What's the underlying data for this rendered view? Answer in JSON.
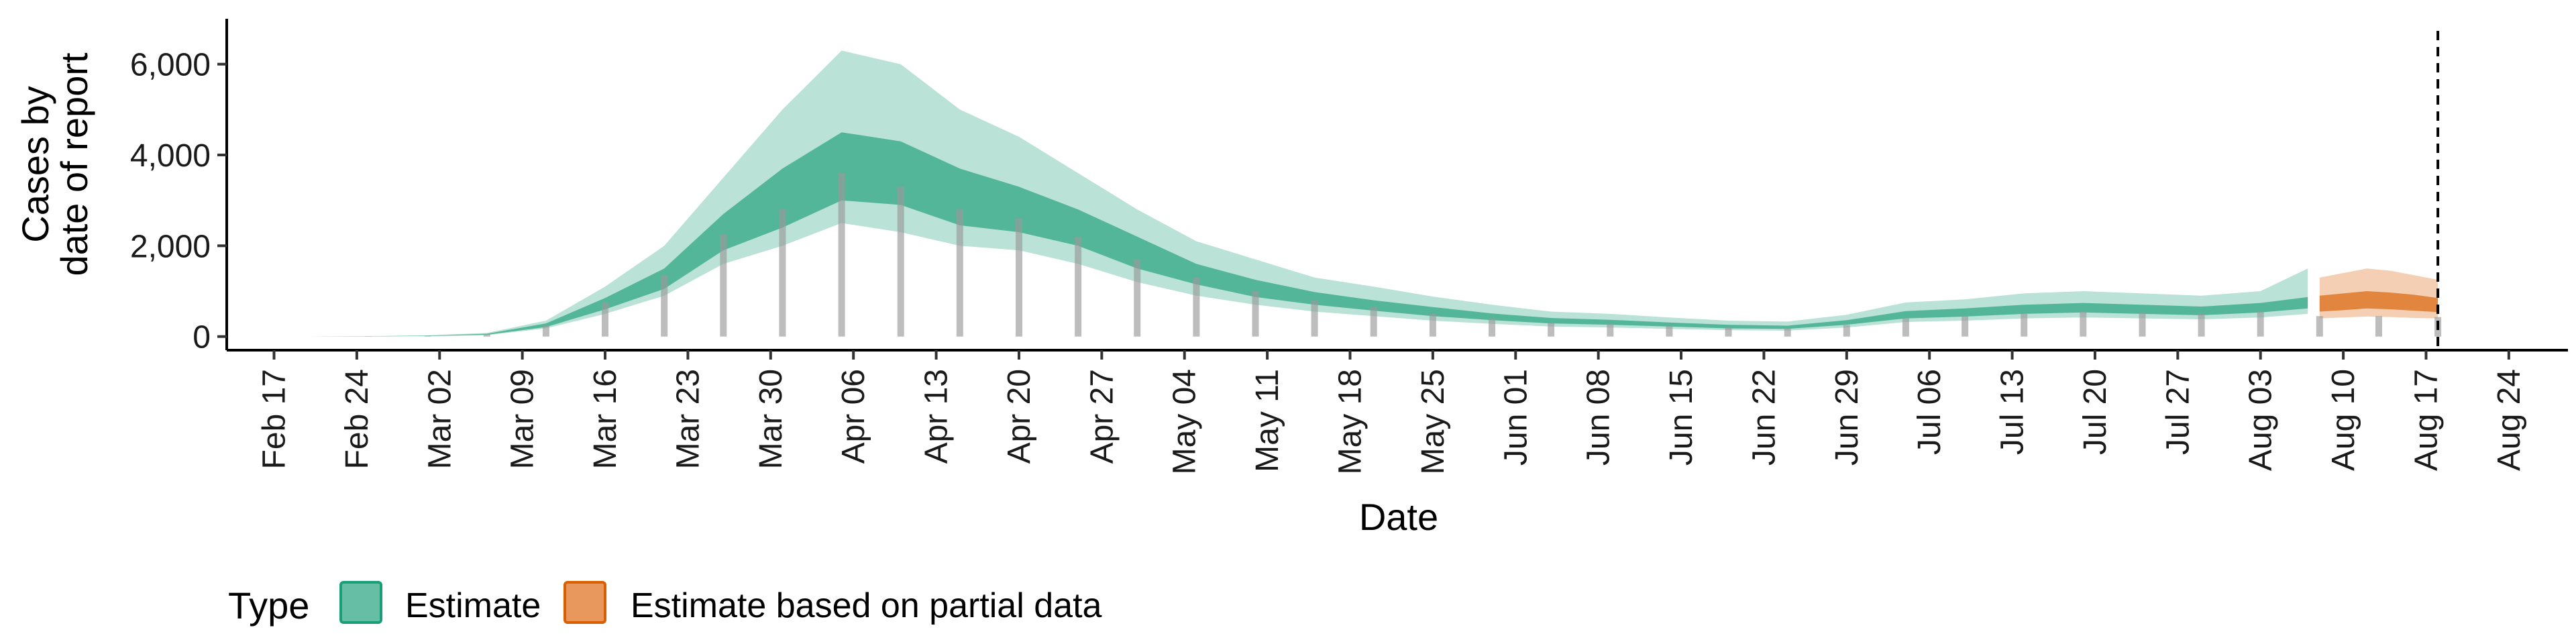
{
  "chart_data": {
    "type": "bar",
    "title": "",
    "xlabel": "Date",
    "ylabel_lines": [
      "Cases by",
      "date of report"
    ],
    "ylim": [
      -300,
      7000
    ],
    "yticks": [
      {
        "value": 0,
        "label": "0"
      },
      {
        "value": 2000,
        "label": "2,000"
      },
      {
        "value": 4000,
        "label": "4,000"
      },
      {
        "value": 6000,
        "label": "6,000"
      }
    ],
    "xrange": [
      "2020-02-13",
      "2020-08-29"
    ],
    "xticks": [
      {
        "date": "2020-02-17",
        "label": "Feb 17"
      },
      {
        "date": "2020-02-24",
        "label": "Feb 24"
      },
      {
        "date": "2020-03-02",
        "label": "Mar 02"
      },
      {
        "date": "2020-03-09",
        "label": "Mar 09"
      },
      {
        "date": "2020-03-16",
        "label": "Mar 16"
      },
      {
        "date": "2020-03-23",
        "label": "Mar 23"
      },
      {
        "date": "2020-03-30",
        "label": "Mar 30"
      },
      {
        "date": "2020-04-06",
        "label": "Apr 06"
      },
      {
        "date": "2020-04-13",
        "label": "Apr 13"
      },
      {
        "date": "2020-04-20",
        "label": "Apr 20"
      },
      {
        "date": "2020-04-27",
        "label": "Apr 27"
      },
      {
        "date": "2020-05-04",
        "label": "May 04"
      },
      {
        "date": "2020-05-11",
        "label": "May 11"
      },
      {
        "date": "2020-05-18",
        "label": "May 18"
      },
      {
        "date": "2020-05-25",
        "label": "May 25"
      },
      {
        "date": "2020-06-01",
        "label": "Jun 01"
      },
      {
        "date": "2020-06-08",
        "label": "Jun 08"
      },
      {
        "date": "2020-06-15",
        "label": "Jun 15"
      },
      {
        "date": "2020-06-22",
        "label": "Jun 22"
      },
      {
        "date": "2020-06-29",
        "label": "Jun 29"
      },
      {
        "date": "2020-07-06",
        "label": "Jul 06"
      },
      {
        "date": "2020-07-13",
        "label": "Jul 13"
      },
      {
        "date": "2020-07-20",
        "label": "Jul 20"
      },
      {
        "date": "2020-07-27",
        "label": "Jul 27"
      },
      {
        "date": "2020-08-03",
        "label": "Aug 03"
      },
      {
        "date": "2020-08-10",
        "label": "Aug 10"
      },
      {
        "date": "2020-08-17",
        "label": "Aug 17"
      },
      {
        "date": "2020-08-24",
        "label": "Aug 24"
      }
    ],
    "reference_line": {
      "date": "2020-08-18",
      "style": "dashed"
    },
    "observed_bars": {
      "dates": [
        "2020-02-20",
        "2020-02-25",
        "2020-03-01",
        "2020-03-06",
        "2020-03-11",
        "2020-03-16",
        "2020-03-21",
        "2020-03-26",
        "2020-03-31",
        "2020-04-05",
        "2020-04-10",
        "2020-04-15",
        "2020-04-20",
        "2020-04-25",
        "2020-04-30",
        "2020-05-05",
        "2020-05-10",
        "2020-05-15",
        "2020-05-20",
        "2020-05-25",
        "2020-05-30",
        "2020-06-04",
        "2020-06-09",
        "2020-06-14",
        "2020-06-19",
        "2020-06-24",
        "2020-06-29",
        "2020-07-04",
        "2020-07-09",
        "2020-07-14",
        "2020-07-19",
        "2020-07-24",
        "2020-07-29",
        "2020-08-03",
        "2020-08-08",
        "2020-08-13",
        "2020-08-18"
      ],
      "values": [
        0,
        5,
        15,
        50,
        250,
        750,
        1350,
        2250,
        2800,
        3600,
        3300,
        2800,
        2600,
        2200,
        1700,
        1300,
        1000,
        800,
        650,
        500,
        400,
        300,
        280,
        230,
        200,
        180,
        250,
        400,
        450,
        500,
        550,
        520,
        500,
        550,
        450,
        450,
        430
      ]
    },
    "series": [
      {
        "name": "Estimate",
        "color": "#1b9e77",
        "dates": [
          "2020-02-20",
          "2020-02-25",
          "2020-03-01",
          "2020-03-06",
          "2020-03-11",
          "2020-03-16",
          "2020-03-21",
          "2020-03-26",
          "2020-03-31",
          "2020-04-05",
          "2020-04-10",
          "2020-04-15",
          "2020-04-20",
          "2020-04-25",
          "2020-04-30",
          "2020-05-05",
          "2020-05-10",
          "2020-05-15",
          "2020-05-20",
          "2020-05-25",
          "2020-05-30",
          "2020-06-04",
          "2020-06-09",
          "2020-06-14",
          "2020-06-19",
          "2020-06-24",
          "2020-06-29",
          "2020-07-04",
          "2020-07-09",
          "2020-07-14",
          "2020-07-19",
          "2020-07-24",
          "2020-07-29",
          "2020-08-03",
          "2020-08-07"
        ],
        "lower90": [
          0,
          0,
          10,
          30,
          180,
          500,
          900,
          1600,
          2000,
          2500,
          2300,
          2000,
          1900,
          1600,
          1200,
          900,
          700,
          550,
          450,
          350,
          280,
          220,
          200,
          170,
          140,
          130,
          200,
          320,
          350,
          400,
          420,
          400,
          380,
          420,
          500
        ],
        "lower50": [
          0,
          5,
          12,
          40,
          210,
          600,
          1050,
          1900,
          2400,
          3000,
          2900,
          2450,
          2300,
          2000,
          1500,
          1150,
          870,
          700,
          570,
          450,
          360,
          290,
          260,
          220,
          180,
          170,
          260,
          400,
          440,
          500,
          530,
          500,
          470,
          530,
          620
        ],
        "upper50": [
          0,
          8,
          20,
          60,
          290,
          850,
          1500,
          2700,
          3700,
          4500,
          4300,
          3700,
          3300,
          2800,
          2200,
          1600,
          1250,
          980,
          800,
          650,
          510,
          410,
          370,
          310,
          260,
          240,
          360,
          560,
          620,
          700,
          740,
          700,
          660,
          740,
          870
        ],
        "upper90": [
          0,
          10,
          25,
          80,
          350,
          1100,
          2000,
          3500,
          5000,
          6300,
          6000,
          5000,
          4400,
          3600,
          2800,
          2100,
          1700,
          1300,
          1100,
          880,
          700,
          550,
          500,
          420,
          350,
          330,
          480,
          750,
          820,
          950,
          1000,
          950,
          900,
          1000,
          1500
        ]
      },
      {
        "name": "Estimate based on partial data",
        "color": "#d95f02",
        "dates": [
          "2020-08-08",
          "2020-08-10",
          "2020-08-12",
          "2020-08-14",
          "2020-08-16",
          "2020-08-18"
        ],
        "lower90": [
          400,
          420,
          440,
          430,
          410,
          400
        ],
        "lower50": [
          550,
          580,
          620,
          600,
          570,
          540
        ],
        "upper50": [
          900,
          950,
          1000,
          970,
          920,
          850
        ],
        "upper90": [
          1300,
          1400,
          1500,
          1450,
          1350,
          1250
        ]
      }
    ],
    "legend": {
      "position": "bottom-left",
      "title": "Type",
      "items": [
        {
          "label": "Estimate",
          "fill": "#66bfa4",
          "stroke": "#1b9e77"
        },
        {
          "label": "Estimate based on partial data",
          "fill": "#e8985c",
          "stroke": "#d95f02"
        }
      ]
    },
    "grid": false
  }
}
